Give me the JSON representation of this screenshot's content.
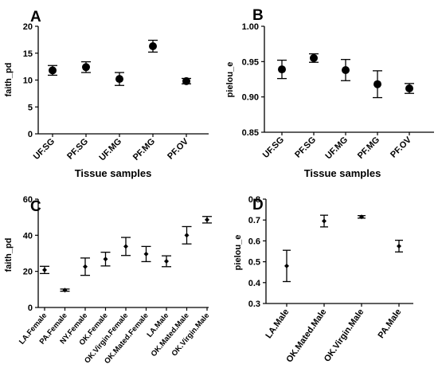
{
  "chart_data": [
    {
      "panel": "A",
      "type": "scatter",
      "categories": [
        "UF.SG",
        "PF.SG",
        "UF.MG",
        "PF.MG",
        "PF.OV"
      ],
      "values": [
        11.8,
        12.4,
        10.2,
        16.3,
        9.8
      ],
      "error": [
        0.9,
        1.0,
        1.2,
        1.1,
        0.5
      ],
      "xlabel": "Tissue samples",
      "ylabel": "faith_pd",
      "ylim": [
        0,
        20
      ],
      "yticks": [
        "0",
        "5",
        "10",
        "15",
        "20"
      ],
      "grid": false
    },
    {
      "panel": "B",
      "type": "scatter",
      "categories": [
        "UF.SG",
        "PF.SG",
        "UF.MG",
        "PF.MG",
        "PF.OV"
      ],
      "values": [
        0.939,
        0.955,
        0.938,
        0.918,
        0.912
      ],
      "error": [
        0.013,
        0.006,
        0.015,
        0.019,
        0.007
      ],
      "xlabel": "Tissue samples",
      "ylabel": "pielou_e",
      "ylim": [
        0.85,
        1.0
      ],
      "yticks": [
        "0.85",
        "0.90",
        "0.95",
        "1.00"
      ],
      "grid": false
    },
    {
      "panel": "C",
      "type": "scatter",
      "categories": [
        "LA.Female",
        "PA.Female",
        "NY.Female",
        "OK.Female",
        "OK.Virgin.Female",
        "OK.Mated.Female",
        "LA.Male",
        "OK.Mated.Male",
        "OK.Virgin.Male"
      ],
      "values": [
        20.8,
        9.6,
        22.6,
        26.8,
        33.8,
        29.6,
        25.6,
        40.0,
        48.6
      ],
      "error": [
        2.0,
        0.6,
        4.8,
        3.8,
        5.0,
        4.2,
        3.0,
        4.8,
        1.8
      ],
      "xlabel": "",
      "ylabel": "faith_pd",
      "ylim": [
        0,
        60
      ],
      "yticks": [
        "0",
        "20",
        "40",
        "60"
      ],
      "grid": false
    },
    {
      "panel": "D",
      "type": "scatter",
      "categories": [
        "LA.Male",
        "OK.Mated.Male",
        "OK.Virgin.Male",
        "PA.Male"
      ],
      "values": [
        0.48,
        0.695,
        0.715,
        0.575
      ],
      "error": [
        0.075,
        0.028,
        0.006,
        0.028
      ],
      "xlabel": "",
      "ylabel": "pielou_e",
      "ylim": [
        0.3,
        0.8
      ],
      "yticks": [
        "0.3",
        "0.4",
        "0.5",
        "0.6",
        "0.7",
        "0.8"
      ],
      "grid": false
    }
  ],
  "colors": {
    "ink": "#000000",
    "background": "#ffffff"
  }
}
